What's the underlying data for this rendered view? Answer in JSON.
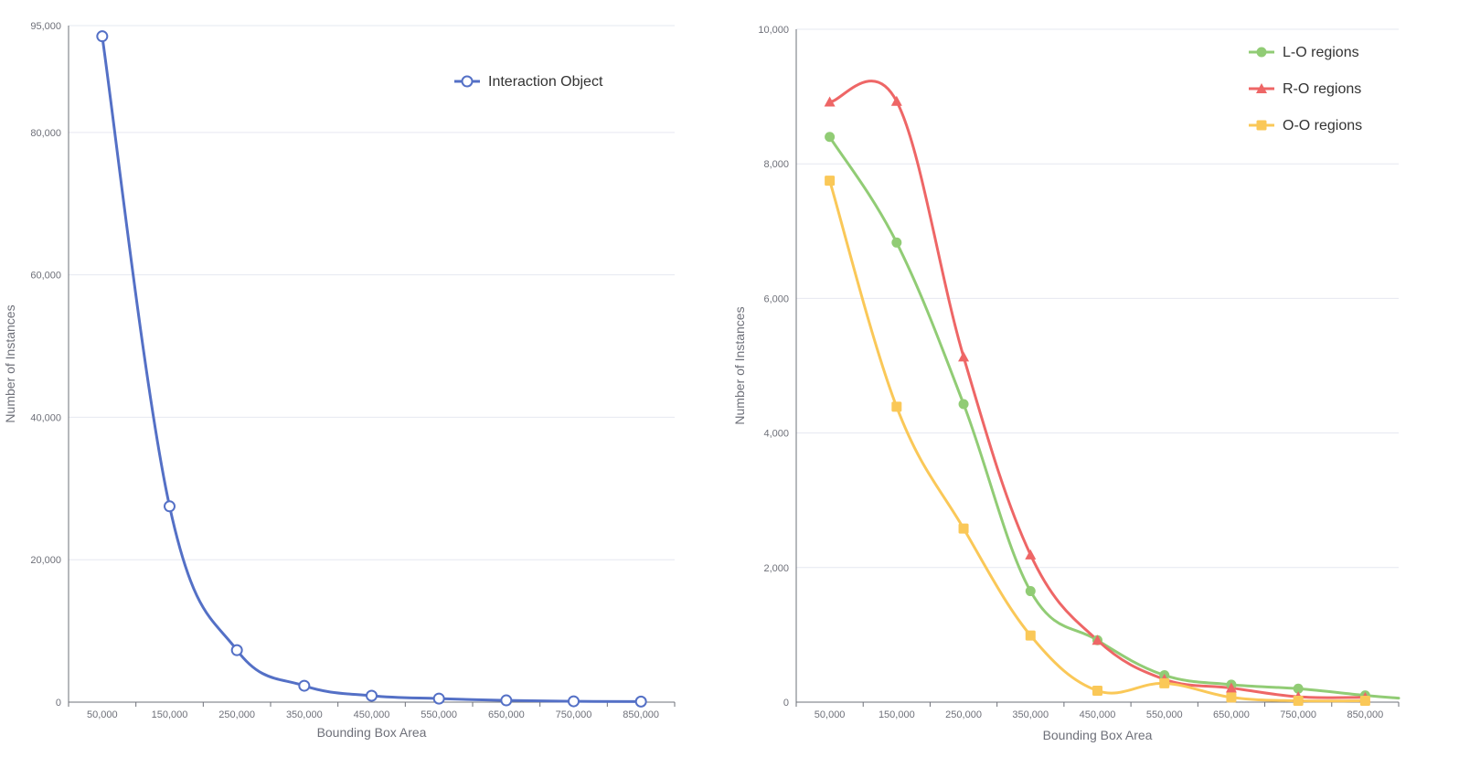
{
  "charts": [
    {
      "type": "line",
      "xlabel": "Bounding Box Area",
      "ylabel": "Number of Instances",
      "categories": [
        "50,000",
        "150,000",
        "250,000",
        "350,000",
        "450,000",
        "550,000",
        "650,000",
        "750,000",
        "850,000"
      ],
      "y_ticks": [
        0,
        20000,
        40000,
        60000,
        80000,
        95000
      ],
      "y_tick_labels": [
        "0",
        "20,000",
        "40,000",
        "60,000",
        "80,000",
        "95,000"
      ],
      "ylim": [
        0,
        95000
      ],
      "x_range": [
        0,
        9
      ],
      "grid": true,
      "legend_position": "top-right",
      "series": [
        {
          "name": "Interaction Object",
          "color": "#5470c6",
          "marker": "empty-circle",
          "x": [
            0.5,
            1.5,
            2.5,
            3.5,
            4.5,
            5.5,
            6.5,
            7.5,
            8.5
          ],
          "values": [
            93500,
            27500,
            7300,
            2300,
            900,
            500,
            250,
            120,
            80
          ]
        }
      ]
    },
    {
      "type": "line",
      "xlabel": "Bounding Box Area",
      "ylabel": "Number of Instances",
      "categories": [
        "50,000",
        "150,000",
        "250,000",
        "350,000",
        "450,000",
        "550,000",
        "650,000",
        "750,000",
        "850,000"
      ],
      "y_ticks": [
        0,
        2000,
        4000,
        6000,
        8000,
        10000
      ],
      "y_tick_labels": [
        "0",
        "2,000",
        "4,000",
        "6,000",
        "8,000",
        "10,000"
      ],
      "ylim": [
        0,
        10000
      ],
      "x_range": [
        0,
        9
      ],
      "grid": true,
      "legend_position": "top-right",
      "series": [
        {
          "name": "L-O regions",
          "color": "#91cc75",
          "marker": "circle",
          "x": [
            0.5,
            1.5,
            2.5,
            3.5,
            4.5,
            5.5,
            6.5,
            7.5,
            8.5,
            9.0
          ],
          "values": [
            8400,
            6830,
            4430,
            1650,
            920,
            400,
            260,
            200,
            100,
            60
          ]
        },
        {
          "name": "R-O regions",
          "color": "#ee6666",
          "marker": "triangle",
          "x": [
            0.5,
            1.5,
            2.5,
            3.5,
            4.5,
            5.5,
            6.5,
            7.5,
            8.5
          ],
          "values": [
            8920,
            8930,
            5130,
            2190,
            920,
            340,
            210,
            80,
            70
          ]
        },
        {
          "name": "O-O regions",
          "color": "#fac858",
          "marker": "rect",
          "x": [
            0.5,
            1.5,
            2.5,
            3.5,
            4.5,
            5.5,
            6.5,
            7.5,
            8.5
          ],
          "values": [
            7750,
            4390,
            2580,
            990,
            170,
            280,
            70,
            20,
            20
          ]
        }
      ]
    }
  ]
}
